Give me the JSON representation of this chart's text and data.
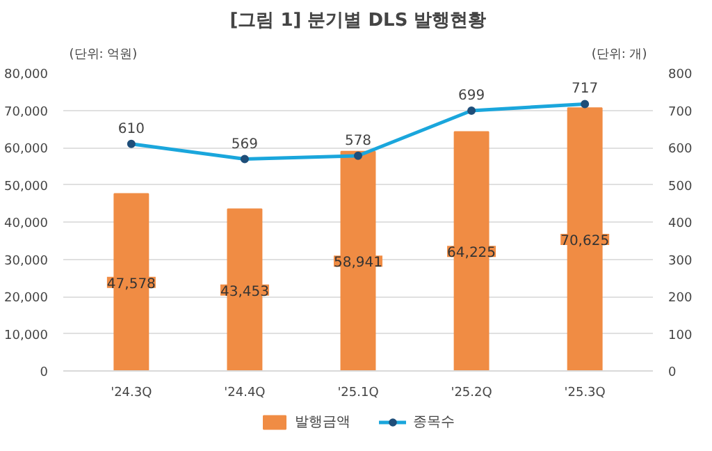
{
  "chart_data": {
    "type": "bar",
    "title": "[그림 1] 분기별 DLS 발행현황",
    "ylabel": "(단위: 억원)",
    "y2label": "(단위: 개)",
    "categories": [
      "'24.3Q",
      "'24.4Q",
      "'25.1Q",
      "'25.2Q",
      "'25.3Q"
    ],
    "series": [
      {
        "name": "발행금액",
        "color": "#f08c44",
        "values": [
          47578,
          43453,
          58941,
          64225,
          70625
        ],
        "value_labels": [
          "47,578",
          "43,453",
          "58,941",
          "64,225",
          "70,625"
        ]
      },
      {
        "name": "종목수",
        "type": "line",
        "axis": "y2",
        "color": "#1aa6dc",
        "marker": "circle",
        "values": [
          610,
          569,
          578,
          699,
          717
        ],
        "value_labels": [
          "610",
          "569",
          "578",
          "699",
          "717"
        ]
      }
    ],
    "ylim": [
      0,
      80000
    ],
    "yticks": [
      {
        "value": 0,
        "label": "0"
      },
      {
        "value": 10000,
        "label": "10,000"
      },
      {
        "value": 20000,
        "label": "20,000"
      },
      {
        "value": 30000,
        "label": "30,000"
      },
      {
        "value": 40000,
        "label": "40,000"
      },
      {
        "value": 50000,
        "label": "50,000"
      },
      {
        "value": 60000,
        "label": "60,000"
      },
      {
        "value": 70000,
        "label": "70,000"
      },
      {
        "value": 80000,
        "label": "80,000"
      }
    ],
    "y2lim": [
      0,
      800
    ],
    "y2ticks": [
      0,
      100,
      200,
      300,
      400,
      500,
      600,
      700,
      800
    ],
    "grid": "y",
    "legend": "bottom"
  }
}
